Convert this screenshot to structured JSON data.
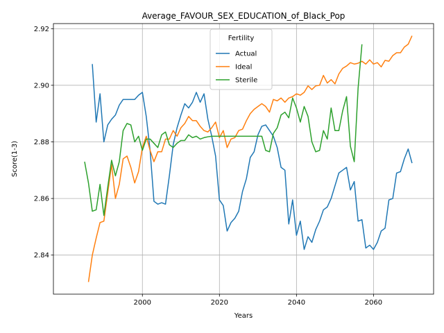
{
  "chart_data": {
    "type": "line",
    "title": "Average_FAVOUR_SEX_EDUCATION_of_Black_Pop",
    "xlabel": "Years",
    "ylabel": "Score(1-3)",
    "xlim": [
      1976.9,
      2075.6
    ],
    "ylim": [
      2.8262,
      2.9218
    ],
    "xticks": [
      2000,
      2020,
      2040,
      2060
    ],
    "xtick_labels": [
      "2000",
      "2020",
      "2040",
      "2060"
    ],
    "yticks": [
      2.84,
      2.86,
      2.88,
      2.9,
      2.92
    ],
    "ytick_labels": [
      "2.84",
      "2.86",
      "2.88",
      "2.90",
      "2.92"
    ],
    "grid": true,
    "legend": {
      "title": "Fertility",
      "placement": "upper-center"
    },
    "series": [
      {
        "name": "Actual",
        "color": "#1f77b4",
        "x": [
          1987,
          1988,
          1989,
          1990,
          1991,
          1992,
          1993,
          1994,
          1995,
          1996,
          1997,
          1998,
          1999,
          2000,
          2001,
          2002,
          2003,
          2004,
          2005,
          2006,
          2007,
          2008,
          2009,
          2010,
          2011,
          2012,
          2013,
          2014,
          2015,
          2016,
          2017,
          2018,
          2019,
          2020,
          2021,
          2022,
          2023,
          2024,
          2025,
          2026,
          2027,
          2028,
          2029,
          2030,
          2031,
          2032,
          2033,
          2034,
          2035,
          2036,
          2037,
          2038,
          2039,
          2040,
          2041,
          2042,
          2043,
          2044,
          2045,
          2046,
          2047,
          2048,
          2049,
          2050,
          2051,
          2052,
          2053,
          2054,
          2055,
          2056,
          2057,
          2058,
          2059,
          2060,
          2061,
          2062,
          2063,
          2064,
          2065,
          2066,
          2067,
          2068,
          2069,
          2070
        ],
        "values": [
          2.9075,
          2.887,
          2.897,
          2.88,
          2.886,
          2.888,
          2.8895,
          2.893,
          2.895,
          2.895,
          2.895,
          2.895,
          2.8965,
          2.8975,
          2.889,
          2.877,
          2.859,
          2.858,
          2.8585,
          2.858,
          2.868,
          2.879,
          2.885,
          2.8895,
          2.8935,
          2.892,
          2.894,
          2.8975,
          2.894,
          2.897,
          2.888,
          2.882,
          2.875,
          2.8595,
          2.8575,
          2.8485,
          2.8515,
          2.853,
          2.8555,
          2.8625,
          2.867,
          2.8745,
          2.8765,
          2.8825,
          2.8855,
          2.886,
          2.884,
          2.882,
          2.878,
          2.871,
          2.87,
          2.851,
          2.8595,
          2.847,
          2.852,
          2.842,
          2.8465,
          2.8445,
          2.849,
          2.852,
          2.856,
          2.857,
          2.86,
          2.8645,
          2.869,
          2.87,
          2.871,
          2.863,
          2.866,
          2.852,
          2.8525,
          2.8425,
          2.8435,
          2.842,
          2.8445,
          2.8485,
          2.8495,
          2.8595,
          2.86,
          2.869,
          2.8695,
          2.874,
          2.8775,
          2.8725
        ]
      },
      {
        "name": "Ideal",
        "color": "#ff7f0e",
        "x": [
          1986,
          1987,
          1988,
          1989,
          1990,
          1991,
          1992,
          1993,
          1994,
          1995,
          1996,
          1997,
          1998,
          1999,
          2000,
          2001,
          2002,
          2003,
          2004,
          2005,
          2006,
          2007,
          2008,
          2009,
          2010,
          2011,
          2012,
          2013,
          2014,
          2015,
          2016,
          2017,
          2018,
          2019,
          2020,
          2021,
          2022,
          2023,
          2024,
          2025,
          2026,
          2027,
          2028,
          2029,
          2030,
          2031,
          2032,
          2033,
          2034,
          2035,
          2036,
          2037,
          2038,
          2039,
          2040,
          2041,
          2042,
          2043,
          2044,
          2045,
          2046,
          2047,
          2048,
          2049,
          2050,
          2051,
          2052,
          2053,
          2054,
          2055,
          2056,
          2057,
          2058,
          2059,
          2060,
          2061,
          2062,
          2063,
          2064,
          2065,
          2066,
          2067,
          2068,
          2069,
          2070
        ],
        "values": [
          2.8305,
          2.84,
          2.846,
          2.8515,
          2.852,
          2.862,
          2.872,
          2.86,
          2.865,
          2.874,
          2.875,
          2.871,
          2.8655,
          2.8695,
          2.878,
          2.882,
          2.877,
          2.873,
          2.8765,
          2.8765,
          2.881,
          2.881,
          2.884,
          2.882,
          2.885,
          2.8865,
          2.889,
          2.8875,
          2.8875,
          2.8855,
          2.884,
          2.8835,
          2.885,
          2.887,
          2.8815,
          2.884,
          2.878,
          2.881,
          2.8815,
          2.884,
          2.8845,
          2.8875,
          2.89,
          2.8915,
          2.8925,
          2.8935,
          2.8925,
          2.8905,
          2.895,
          2.8945,
          2.8955,
          2.894,
          2.8955,
          2.896,
          2.897,
          2.8965,
          2.8975,
          2.8998,
          2.8985,
          2.8998,
          2.9,
          2.9035,
          2.9008,
          2.902,
          2.9005,
          2.904,
          2.906,
          2.9068,
          2.908,
          2.9075,
          2.9078,
          2.9085,
          2.9075,
          2.909,
          2.9075,
          2.908,
          2.9065,
          2.9088,
          2.9085,
          2.9105,
          2.9115,
          2.9115,
          2.9135,
          2.9145,
          2.9175
        ]
      },
      {
        "name": "Sterile",
        "color": "#2ca02c",
        "x": [
          1985,
          1986,
          1987,
          1988,
          1989,
          1990,
          1991,
          1992,
          1993,
          1994,
          1995,
          1996,
          1997,
          1998,
          1999,
          2000,
          2001,
          2002,
          2003,
          2004,
          2005,
          2006,
          2007,
          2008,
          2009,
          2010,
          2011,
          2012,
          2013,
          2014,
          2015,
          2016,
          2017,
          2018,
          2019,
          2020,
          2021,
          2022,
          2023,
          2024,
          2025,
          2026,
          2027,
          2028,
          2029,
          2030,
          2031,
          2032,
          2033,
          2034,
          2035,
          2036,
          2037,
          2038,
          2039,
          2040,
          2041,
          2042,
          2043,
          2044,
          2045,
          2046,
          2047,
          2048,
          2049,
          2050,
          2051,
          2052,
          2053,
          2054,
          2055,
          2056,
          2057
        ],
        "values": [
          2.873,
          2.8655,
          2.8555,
          2.856,
          2.865,
          2.854,
          2.864,
          2.8735,
          2.868,
          2.873,
          2.884,
          2.8865,
          2.886,
          2.88,
          2.882,
          2.877,
          2.881,
          2.881,
          2.8795,
          2.878,
          2.8825,
          2.8835,
          2.879,
          2.878,
          2.8795,
          2.8805,
          2.8805,
          2.8825,
          2.8815,
          2.882,
          2.881,
          2.8815,
          2.8818,
          2.882,
          2.882,
          2.882,
          2.882,
          2.882,
          2.882,
          2.882,
          2.882,
          2.882,
          2.882,
          2.882,
          2.882,
          2.882,
          2.882,
          2.877,
          2.8765,
          2.883,
          2.885,
          2.8895,
          2.8905,
          2.8885,
          2.8955,
          2.892,
          2.887,
          2.8925,
          2.889,
          2.88,
          2.8765,
          2.877,
          2.884,
          2.881,
          2.892,
          2.884,
          2.884,
          2.891,
          2.896,
          2.8785,
          2.873,
          2.899,
          2.9145
        ]
      }
    ]
  }
}
